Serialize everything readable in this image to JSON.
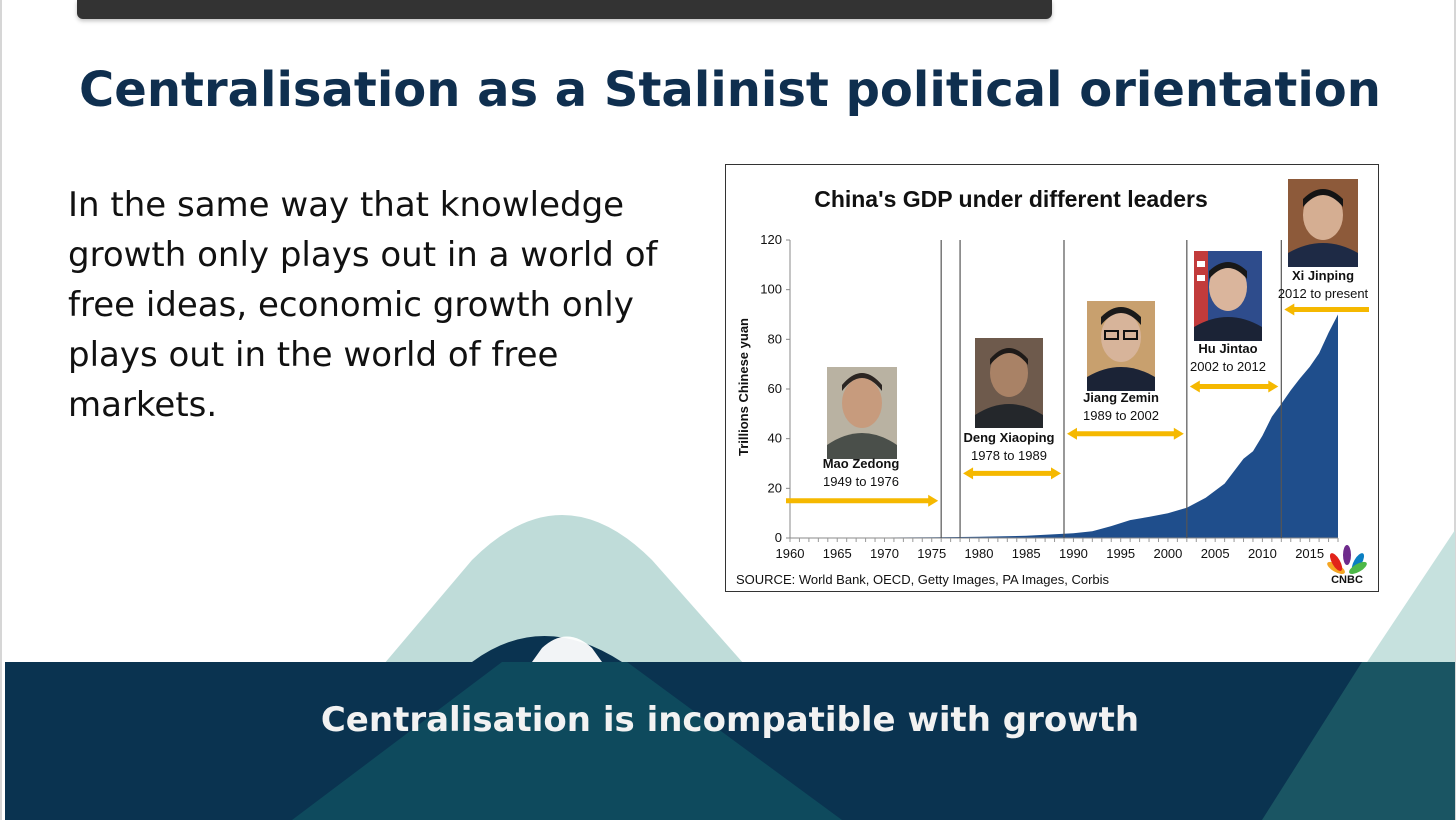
{
  "slide": {
    "title": "Centralisation as a Stalinist political orientation",
    "body": "In the same way that knowledge growth only plays out in a world of free ideas, economic growth only plays out in the world of free markets.",
    "footer": "Centralisation is incompatible with growth"
  },
  "colors": {
    "title": "#0f2f4f",
    "footer_bg": "#0d3c55",
    "accent_teal": "#9fcdc9",
    "area_fill": "#1f4e8c",
    "arrow": "#f5b800"
  },
  "chart_data": {
    "type": "area",
    "title": "China's GDP under different leaders",
    "ylabel": "Trillions Chinese yuan",
    "xlabel": "",
    "ylim": [
      0,
      120
    ],
    "xlim": [
      1960,
      2018
    ],
    "yticks": [
      0,
      20,
      40,
      60,
      80,
      100,
      120
    ],
    "xticks": [
      1960,
      1965,
      1970,
      1975,
      1980,
      1985,
      1990,
      1995,
      2000,
      2005,
      2010,
      2015
    ],
    "grid": false,
    "source": "SOURCE: World Bank, OECD, Getty Images, PA Images, Corbis",
    "logo": "CNBC",
    "x": [
      1960,
      1965,
      1970,
      1975,
      1978,
      1980,
      1985,
      1988,
      1990,
      1992,
      1994,
      1996,
      1998,
      2000,
      2002,
      2004,
      2006,
      2008,
      2009,
      2010,
      2011,
      2012,
      2013,
      2014,
      2015,
      2016,
      2017,
      2018
    ],
    "values": [
      0.1,
      0.2,
      0.2,
      0.3,
      0.4,
      0.5,
      0.9,
      1.5,
      1.9,
      2.7,
      4.8,
      7.2,
      8.5,
      10.0,
      12.2,
      16.2,
      21.9,
      31.9,
      34.9,
      41.2,
      48.9,
      54.0,
      59.5,
      64.4,
      68.9,
      74.4,
      82.7,
      90.0
    ],
    "leader_lines": [
      1976,
      1978,
      1989,
      2002,
      2012
    ],
    "leaders": [
      {
        "name": "Mao Zedong",
        "term": "1949 to 1976",
        "arrow_from": 1960,
        "arrow_to": 1976,
        "arrow_y": 15,
        "arrow_head": "right"
      },
      {
        "name": "Deng Xiaoping",
        "term": "1978 to 1989",
        "arrow_from": 1978,
        "arrow_to": 1989,
        "arrow_y": 26,
        "arrow_head": "both"
      },
      {
        "name": "Jiang Zemin",
        "term": "1989 to 2002",
        "arrow_from": 1989,
        "arrow_to": 2002,
        "arrow_y": 42,
        "arrow_head": "both"
      },
      {
        "name": "Hu Jintao",
        "term": "2002 to 2012",
        "arrow_from": 2002,
        "arrow_to": 2012,
        "arrow_y": 61,
        "arrow_head": "both"
      },
      {
        "name": "Xi Jinping",
        "term": "2012 to present",
        "arrow_from": 2012,
        "arrow_to": 2018,
        "arrow_y": 92,
        "arrow_head": "left"
      }
    ]
  }
}
